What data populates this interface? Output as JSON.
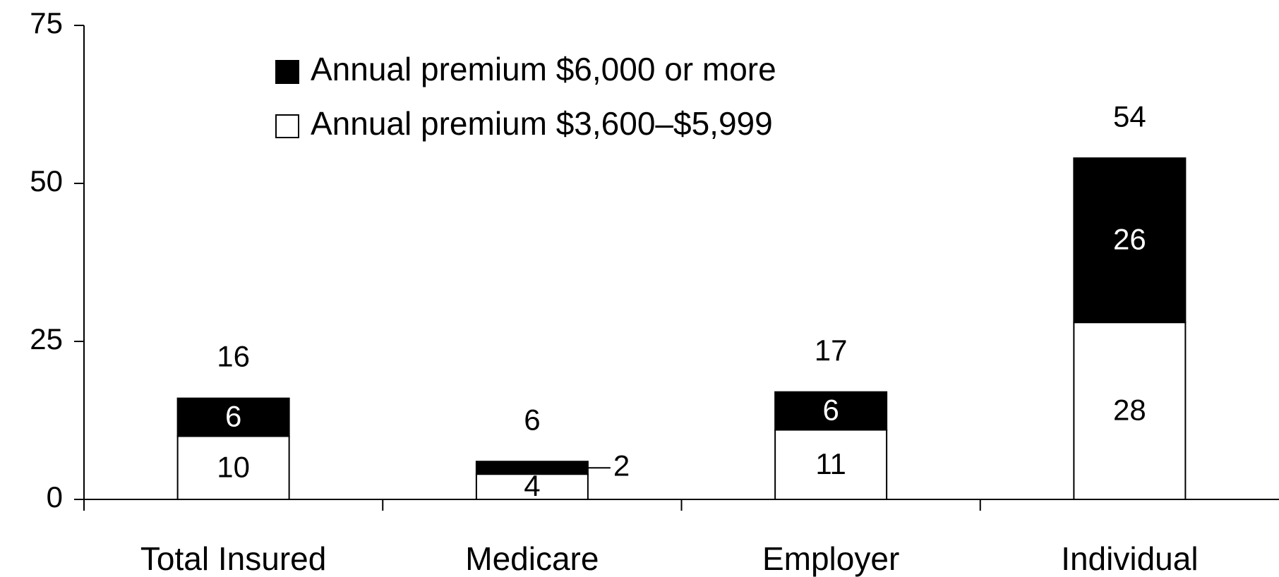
{
  "chart_data": {
    "type": "stacked_bar",
    "categories": [
      "Total Insured",
      "Medicare",
      "Employer",
      "Individual"
    ],
    "series": [
      {
        "name": "Annual premium $3,600–$5,999",
        "color": "#ffffff",
        "values": [
          10,
          4,
          11,
          28
        ]
      },
      {
        "name": "Annual premium $6,000 or more",
        "color": "#000000",
        "values": [
          6,
          2,
          6,
          26
        ]
      }
    ],
    "totals": [
      16,
      6,
      17,
      54
    ],
    "ylim": [
      0,
      75
    ],
    "yticks": [
      0,
      25,
      50,
      75
    ],
    "grid": false
  }
}
